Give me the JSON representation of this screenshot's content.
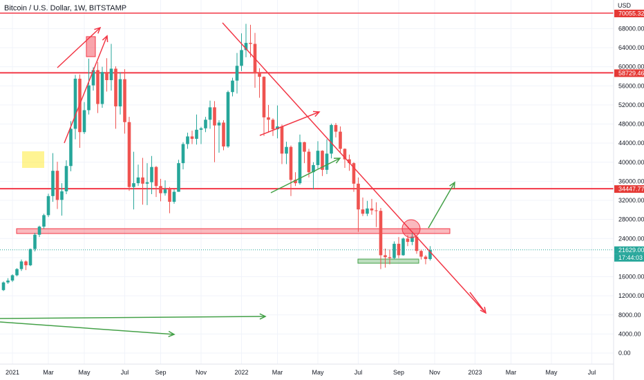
{
  "chart_data": {
    "type": "candlestick",
    "title": "Bitcoin / U.S. Dollar, 1W, BITSTAMP",
    "currency_label": "USD",
    "y_ticks": [
      0,
      4000,
      8000,
      12000,
      16000,
      20000,
      24000,
      28000,
      32000,
      36000,
      40000,
      44000,
      48000,
      52000,
      56000,
      60000,
      64000,
      68000
    ],
    "x_ticks": [
      {
        "label": "2021",
        "week": 2
      },
      {
        "label": "Mar",
        "week": 10
      },
      {
        "label": "May",
        "week": 18
      },
      {
        "label": "Jul",
        "week": 27
      },
      {
        "label": "Sep",
        "week": 35
      },
      {
        "label": "Nov",
        "week": 44
      },
      {
        "label": "2022",
        "week": 53
      },
      {
        "label": "Mar",
        "week": 61
      },
      {
        "label": "May",
        "week": 70
      },
      {
        "label": "Jul",
        "week": 79
      },
      {
        "label": "Sep",
        "week": 88
      },
      {
        "label": "Nov",
        "week": 96
      },
      {
        "label": "2023",
        "week": 105
      },
      {
        "label": "Mar",
        "week": 113
      },
      {
        "label": "May",
        "week": 122
      },
      {
        "label": "Jul",
        "week": 131
      }
    ],
    "candles": [
      [
        13200,
        15000,
        13000,
        14800
      ],
      [
        14800,
        15700,
        14500,
        15200
      ],
      [
        15200,
        16500,
        14900,
        16300
      ],
      [
        16300,
        17800,
        16100,
        17600
      ],
      [
        17600,
        19600,
        17200,
        19200
      ],
      [
        19200,
        19400,
        17400,
        18400
      ],
      [
        18400,
        21900,
        18200,
        21800
      ],
      [
        21800,
        25200,
        21300,
        24800
      ],
      [
        24800,
        26700,
        24300,
        26500
      ],
      [
        26500,
        29200,
        26100,
        28900
      ],
      [
        28900,
        33400,
        28500,
        32900
      ],
      [
        32900,
        41900,
        31700,
        38200
      ],
      [
        38200,
        40100,
        30200,
        32100
      ],
      [
        32100,
        35600,
        28800,
        33900
      ],
      [
        33900,
        40400,
        33300,
        39200
      ],
      [
        39200,
        48600,
        38100,
        47000
      ],
      [
        47000,
        58300,
        44800,
        57500
      ],
      [
        57500,
        58400,
        43000,
        46300
      ],
      [
        46300,
        52600,
        45900,
        50900
      ],
      [
        50900,
        61700,
        50000,
        56100
      ],
      [
        56100,
        59900,
        55000,
        59300
      ],
      [
        59300,
        61000,
        50300,
        52200
      ],
      [
        52200,
        60000,
        51400,
        58900
      ],
      [
        58900,
        61800,
        54800,
        57200
      ],
      [
        57200,
        64800,
        55000,
        59600
      ],
      [
        59600,
        60100,
        47000,
        51700
      ],
      [
        51700,
        58800,
        50000,
        57400
      ],
      [
        57400,
        59500,
        46000,
        48400
      ],
      [
        48400,
        49500,
        34000,
        34800
      ],
      [
        34800,
        42200,
        30100,
        35600
      ],
      [
        35600,
        39500,
        35000,
        36800
      ],
      [
        36800,
        40900,
        31100,
        35500
      ],
      [
        35500,
        39800,
        31000,
        35800
      ],
      [
        35800,
        41300,
        33300,
        39000
      ],
      [
        39000,
        39200,
        32700,
        35000
      ],
      [
        35000,
        36500,
        31800,
        33500
      ],
      [
        33500,
        36200,
        33000,
        34300
      ],
      [
        34300,
        34800,
        29300,
        31700
      ],
      [
        31700,
        34300,
        31300,
        33800
      ],
      [
        33800,
        40500,
        33800,
        39800
      ],
      [
        39800,
        44200,
        38500,
        43800
      ],
      [
        43800,
        46200,
        42800,
        45400
      ],
      [
        45400,
        46600,
        43800,
        44900
      ],
      [
        44900,
        50000,
        43700,
        46800
      ],
      [
        46800,
        47400,
        43800,
        47100
      ],
      [
        47100,
        49500,
        46300,
        48900
      ],
      [
        48900,
        52900,
        47000,
        51500
      ],
      [
        51500,
        52800,
        40000,
        47700
      ],
      [
        47700,
        48800,
        42000,
        48300
      ],
      [
        48300,
        48800,
        42500,
        43300
      ],
      [
        43300,
        55000,
        43000,
        54700
      ],
      [
        54700,
        57700,
        53800,
        57100
      ],
      [
        57100,
        62900,
        54400,
        60200
      ],
      [
        60200,
        67000,
        59100,
        63500
      ],
      [
        63500,
        69000,
        62000,
        65000
      ],
      [
        65000,
        68800,
        62000,
        64800
      ],
      [
        64800,
        67100,
        55600,
        58600
      ],
      [
        58600,
        59700,
        53500,
        57900
      ],
      [
        57900,
        58000,
        45500,
        49400
      ],
      [
        49400,
        52000,
        46200,
        48900
      ],
      [
        48900,
        49200,
        45500,
        46900
      ],
      [
        46900,
        51900,
        45000,
        47500
      ],
      [
        47500,
        47900,
        39600,
        41800
      ],
      [
        41800,
        44300,
        39600,
        43200
      ],
      [
        43200,
        43500,
        32900,
        36300
      ],
      [
        36300,
        37900,
        35000,
        35600
      ],
      [
        35600,
        45800,
        35300,
        44200
      ],
      [
        44200,
        44300,
        39800,
        42200
      ],
      [
        42200,
        42800,
        36800,
        37900
      ],
      [
        37900,
        40000,
        34300,
        39400
      ],
      [
        39400,
        44400,
        38600,
        42400
      ],
      [
        42400,
        42500,
        37100,
        38400
      ],
      [
        38400,
        44800,
        37500,
        41800
      ],
      [
        41800,
        48100,
        40800,
        47800
      ],
      [
        47800,
        48200,
        45200,
        46400
      ],
      [
        46400,
        47500,
        42000,
        42800
      ],
      [
        42800,
        42900,
        38800,
        40600
      ],
      [
        40600,
        41600,
        38200,
        39800
      ],
      [
        39800,
        40000,
        33800,
        35500
      ],
      [
        35500,
        36800,
        25400,
        30100
      ],
      [
        30100,
        32600,
        28700,
        29200
      ],
      [
        29200,
        31900,
        28700,
        30300
      ],
      [
        30300,
        32300,
        29000,
        29900
      ],
      [
        29900,
        31600,
        26400,
        29800
      ],
      [
        29800,
        30400,
        17600,
        20500
      ],
      [
        20500,
        21900,
        17900,
        20100
      ],
      [
        20100,
        21700,
        18600,
        19900
      ],
      [
        19900,
        23400,
        19600,
        22900
      ],
      [
        22900,
        24300,
        19900,
        20500
      ],
      [
        20500,
        24200,
        20400,
        24000
      ],
      [
        24000,
        24700,
        22400,
        23300
      ],
      [
        23300,
        25200,
        22600,
        24400
      ],
      [
        24400,
        24500,
        20800,
        21400
      ],
      [
        21400,
        21700,
        19600,
        20200
      ],
      [
        20200,
        20500,
        18600,
        19700
      ],
      [
        19700,
        22400,
        19400,
        21600
      ]
    ],
    "price_tags": [
      {
        "label": "70055.32",
        "color": "#e53935",
        "value": 70055
      },
      {
        "label": "58729.46",
        "color": "#e53935",
        "value": 58729
      },
      {
        "label": "34447.77",
        "color": "#e53935",
        "value": 34447
      },
      {
        "label": "21629.00",
        "color": "#26a69a",
        "value": 21629
      },
      {
        "label": "17:44:03",
        "color": "#26a69a",
        "value": 21629
      }
    ],
    "h_lines": [
      58729,
      34447
    ],
    "up_color": "#26a69a",
    "down_color": "#ef5350",
    "line_red": "#f23645",
    "line_green": "#43a047"
  }
}
